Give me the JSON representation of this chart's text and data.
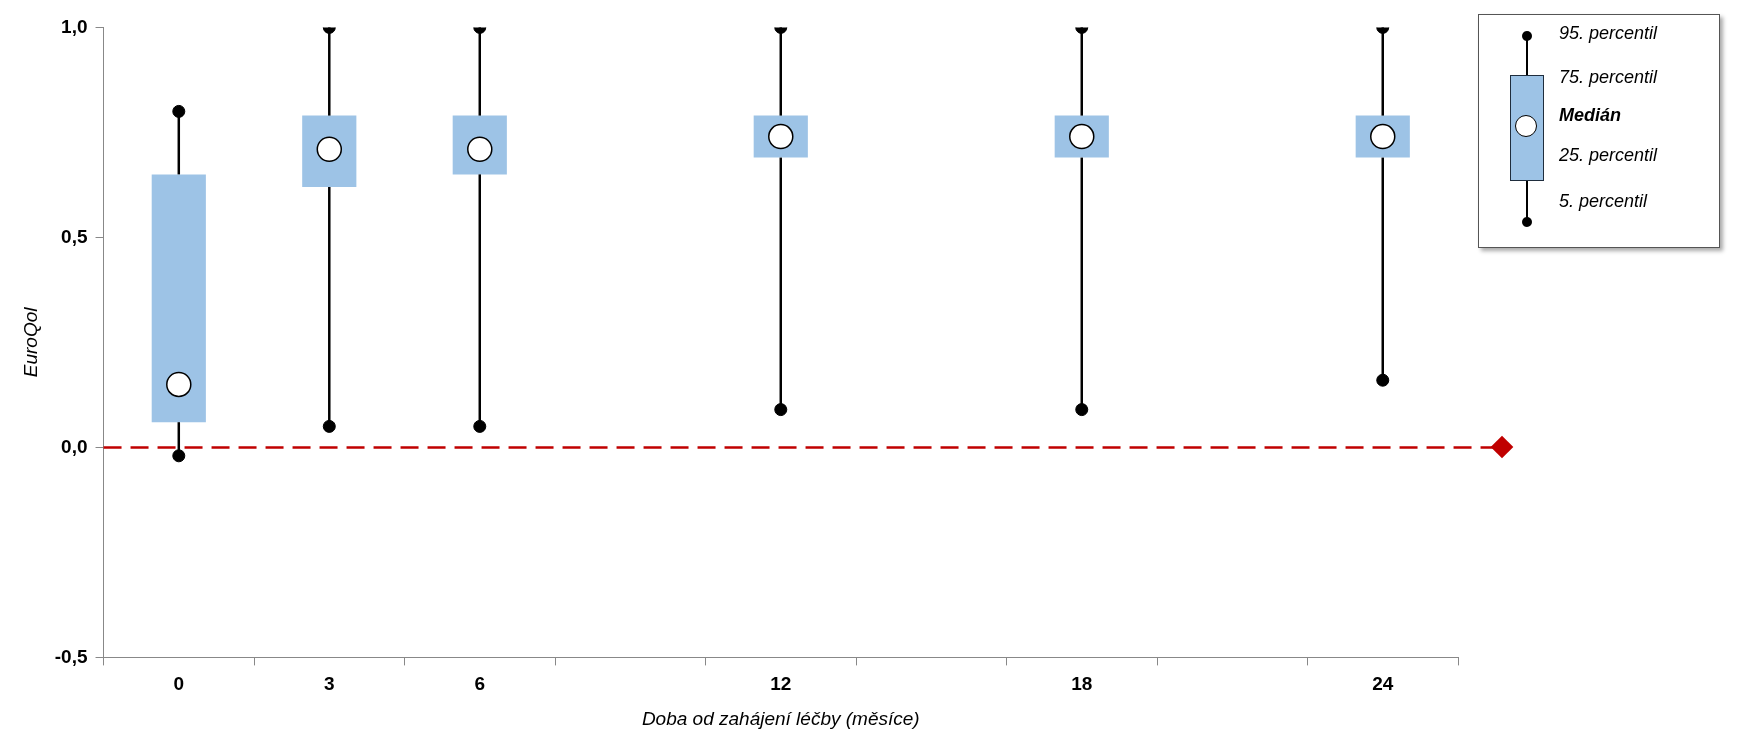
{
  "chart_data": {
    "type": "box",
    "xlabel": "Doba od zahájení léčby (měsíce)",
    "ylabel": "EuroQol",
    "categories": [
      "0",
      "3",
      "6",
      null,
      "12",
      null,
      "18",
      null,
      "24"
    ],
    "color": "#9dc3e6",
    "boxes": [
      {
        "low": -0.02,
        "q1": 0.06,
        "median": 0.15,
        "q3": 0.65,
        "high": 0.8
      },
      {
        "low": 0.05,
        "q1": 0.62,
        "median": 0.71,
        "q3": 0.79,
        "high": 1.0
      },
      {
        "low": 0.05,
        "q1": 0.65,
        "median": 0.71,
        "q3": 0.79,
        "high": 1.0
      },
      null,
      {
        "low": 0.09,
        "q1": 0.69,
        "median": 0.74,
        "q3": 0.79,
        "high": 1.0
      },
      null,
      {
        "low": 0.09,
        "q1": 0.69,
        "median": 0.74,
        "q3": 0.79,
        "high": 1.0
      },
      null,
      {
        "low": 0.16,
        "q1": 0.69,
        "median": 0.74,
        "q3": 0.79,
        "high": 1.0
      }
    ],
    "ylim": [
      -0.5,
      1.0
    ],
    "yticks": [
      {
        "value": -0.5,
        "label": "-0,5"
      },
      {
        "value": 0,
        "label": "0,0"
      },
      {
        "value": 0.5,
        "label": "0,5"
      },
      {
        "value": 1.0,
        "label": "1,0"
      }
    ],
    "ref_lines": [
      {
        "axis": "y",
        "value": 0,
        "color": "#c00000",
        "line_style": "dashed"
      }
    ],
    "grid": false,
    "series": [
      {
        "type": "scatter",
        "color": "#000000",
        "marker": "circle",
        "x": [
          "0",
          "0",
          "3",
          "3",
          "6",
          "6",
          "12",
          "12",
          "18",
          "18",
          "24",
          "24"
        ],
        "values": [
          0.8,
          -0.02,
          1.0,
          0.05,
          1.0,
          0.05,
          1.0,
          0.09,
          1.0,
          0.09,
          1.0,
          0.16
        ]
      }
    ],
    "annotations": [
      "95. percentil",
      "75. percentil",
      "Medián",
      "25. percentil",
      "5. percentil"
    ]
  }
}
